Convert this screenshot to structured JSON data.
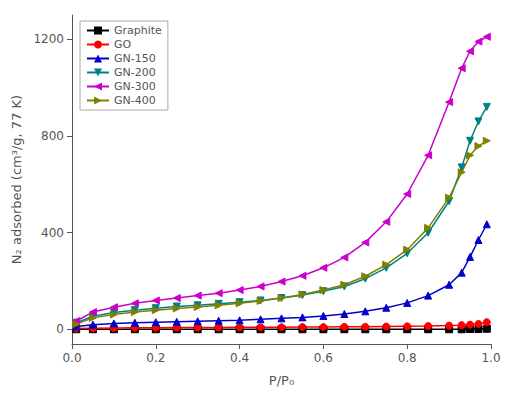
{
  "chart_data": {
    "type": "line",
    "xlabel": "P/P₀",
    "ylabel": "N₂ adsorbed (cm³/g, 77 K)",
    "xlim": [
      0.0,
      1.0
    ],
    "ylim": [
      -60,
      1300
    ],
    "xticks": [
      {
        "value": 0,
        "label": "0.0"
      },
      0.2,
      0.4,
      0.6,
      0.8,
      {
        "value": 1,
        "label": "1.0"
      }
    ],
    "yticks": [
      0,
      400,
      800,
      1200
    ],
    "grid": false,
    "legend": "upper left",
    "x": [
      0.01,
      0.05,
      0.1,
      0.15,
      0.2,
      0.25,
      0.3,
      0.35,
      0.4,
      0.45,
      0.5,
      0.55,
      0.6,
      0.65,
      0.7,
      0.75,
      0.8,
      0.85,
      0.9,
      0.93,
      0.95,
      0.97,
      0.99
    ],
    "series": [
      {
        "name": "Graphite",
        "color": "#000000",
        "marker": "square",
        "values": [
          1,
          1,
          1,
          1,
          1,
          1,
          1,
          1,
          1,
          1,
          1,
          1,
          1,
          1,
          1,
          1,
          1,
          1,
          1,
          1,
          2,
          2,
          3
        ]
      },
      {
        "name": "GO",
        "color": "#ff0000",
        "marker": "circle",
        "values": [
          4,
          5,
          6,
          7,
          7,
          8,
          8,
          8,
          9,
          9,
          9,
          10,
          10,
          11,
          11,
          12,
          13,
          14,
          16,
          18,
          20,
          23,
          30
        ]
      },
      {
        "name": "GN-150",
        "color": "#0000cc",
        "marker": "triangle-up",
        "values": [
          12,
          20,
          25,
          28,
          30,
          32,
          34,
          36,
          38,
          42,
          46,
          50,
          56,
          64,
          75,
          90,
          110,
          140,
          185,
          235,
          300,
          370,
          435
        ]
      },
      {
        "name": "GN-200",
        "color": "#008080",
        "marker": "triangle-down",
        "values": [
          28,
          55,
          70,
          80,
          88,
          95,
          100,
          106,
          113,
          120,
          130,
          142,
          158,
          178,
          210,
          255,
          315,
          400,
          530,
          670,
          780,
          860,
          920
        ]
      },
      {
        "name": "GN-300",
        "color": "#cc00cc",
        "marker": "triangle-left",
        "values": [
          35,
          72,
          92,
          108,
          120,
          130,
          140,
          150,
          163,
          178,
          198,
          222,
          255,
          298,
          360,
          445,
          560,
          720,
          940,
          1080,
          1150,
          1190,
          1210
        ]
      },
      {
        "name": "GN-400",
        "color": "#808000",
        "marker": "triangle-right",
        "values": [
          22,
          48,
          62,
          72,
          80,
          87,
          93,
          100,
          108,
          118,
          130,
          145,
          163,
          185,
          220,
          268,
          330,
          420,
          545,
          650,
          720,
          758,
          780
        ]
      }
    ]
  }
}
